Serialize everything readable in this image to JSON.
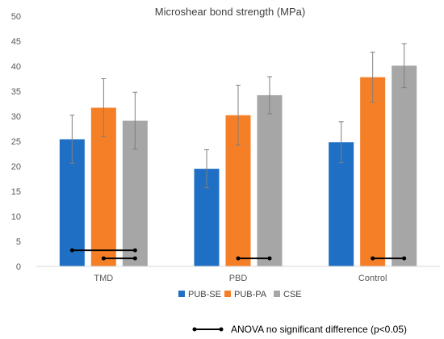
{
  "chart_data": {
    "type": "bar",
    "title": "Microshear bond strength (MPa)",
    "categories": [
      "TMD",
      "PBD",
      "Control"
    ],
    "ylim": [
      0,
      50
    ],
    "yticks": [
      0,
      5,
      10,
      15,
      20,
      25,
      30,
      35,
      40,
      45,
      50
    ],
    "grid": false,
    "legend_position": "bottom",
    "series": [
      {
        "name": "PUB-SE",
        "color": "#1f6fc5",
        "values": [
          25.4,
          19.5,
          24.8
        ],
        "errors": [
          4.8,
          3.8,
          4.1
        ]
      },
      {
        "name": "PUB-PA",
        "color": "#f57f27",
        "values": [
          31.7,
          30.2,
          37.8
        ],
        "errors": [
          5.8,
          6.0,
          5.0
        ]
      },
      {
        "name": "CSE",
        "color": "#a6a6a6",
        "values": [
          29.1,
          34.2,
          40.1
        ],
        "errors": [
          5.7,
          3.7,
          4.4
        ]
      }
    ],
    "anova_lines": [
      {
        "category": 0,
        "from_series": 0,
        "to_series": 2,
        "y": 3.2
      },
      {
        "category": 0,
        "from_series": 1,
        "to_series": 2,
        "y": 1.6
      },
      {
        "category": 1,
        "from_series": 1,
        "to_series": 2,
        "y": 1.6
      },
      {
        "category": 2,
        "from_series": 1,
        "to_series": 2,
        "y": 1.6
      }
    ]
  },
  "note": {
    "label": "ANOVA no significant difference (p<0.05)"
  }
}
